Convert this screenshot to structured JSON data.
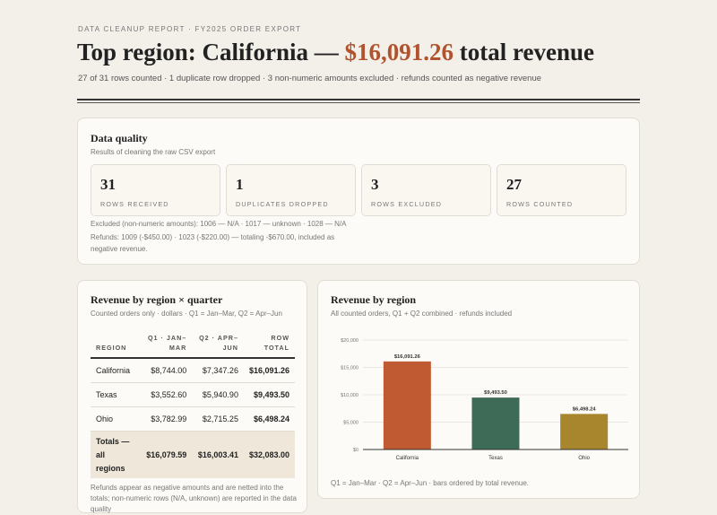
{
  "header": {
    "eyebrow": "DATA CLEANUP REPORT · FY2025 ORDER EXPORT",
    "headline_prefix": "Top region: California — ",
    "headline_value": "$16,091.26",
    "headline_suffix": " total revenue",
    "subline": "27 of 31 rows counted · 1 duplicate row dropped · 3 non-numeric amounts excluded · refunds counted as negative revenue"
  },
  "colors": {
    "accent": "#b0532e",
    "california": "#c05a32",
    "texas": "#3e6b57",
    "ohio": "#a8862e",
    "background": "#f3f0ea"
  },
  "data_quality": {
    "title": "Data quality",
    "subtitle": "Results of cleaning the raw CSV export",
    "stats": [
      {
        "value": "31",
        "label": "ROWS RECEIVED"
      },
      {
        "value": "1",
        "label": "DUPLICATES DROPPED"
      },
      {
        "value": "3",
        "label": "ROWS EXCLUDED"
      },
      {
        "value": "27",
        "label": "ROWS COUNTED"
      }
    ],
    "excluded_note": "Excluded (non-numeric amounts): 1006 — N/A · 1017 — unknown · 1028 — N/A",
    "refunds_note": "Refunds: 1009 (-$450.00) · 1023 (-$220.00) — totaling -$670.00, included as negative revenue."
  },
  "region_quarter": {
    "title": "Revenue by region × quarter",
    "subtitle": "Counted orders only · dollars · Q1 = Jan–Mar, Q2 = Apr–Jun",
    "columns": [
      "REGION",
      "Q1 · JAN–MAR",
      "Q2 · APR–JUN",
      "ROW TOTAL"
    ],
    "rows": [
      {
        "region": "California",
        "q1": "$8,744.00",
        "q2": "$7,347.26",
        "total": "$16,091.26"
      },
      {
        "region": "Texas",
        "q1": "$3,552.60",
        "q2": "$5,940.90",
        "total": "$9,493.50"
      },
      {
        "region": "Ohio",
        "q1": "$3,782.99",
        "q2": "$2,715.25",
        "total": "$6,498.24"
      }
    ],
    "totals": {
      "label": "Totals — all regions",
      "q1": "$16,079.59",
      "q2": "$16,003.41",
      "total": "$32,083.00"
    },
    "footnote": "Refunds appear as negative amounts and are netted into the totals; non-numeric rows (N/A, unknown) are reported in the data quality"
  },
  "region_chart": {
    "title": "Revenue by region",
    "subtitle": "All counted orders, Q1 + Q2 combined · refunds included",
    "footnote": "Q1 = Jan–Mar · Q2 = Apr–Jun · bars ordered by total revenue."
  },
  "chart_data": {
    "type": "bar",
    "title": "Revenue by region",
    "categories": [
      "California",
      "Texas",
      "Ohio"
    ],
    "values": [
      16091.26,
      9493.5,
      6498.24
    ],
    "value_labels": [
      "$16,091.26",
      "$9,493.50",
      "$6,498.24"
    ],
    "ylim": [
      0,
      20000
    ],
    "yticks": [
      0,
      5000,
      10000,
      15000,
      20000
    ],
    "ytick_labels": [
      "$0",
      "$5,000",
      "$10,000",
      "$15,000",
      "$20,000"
    ],
    "grid": true,
    "xlabel": "",
    "ylabel": ""
  }
}
